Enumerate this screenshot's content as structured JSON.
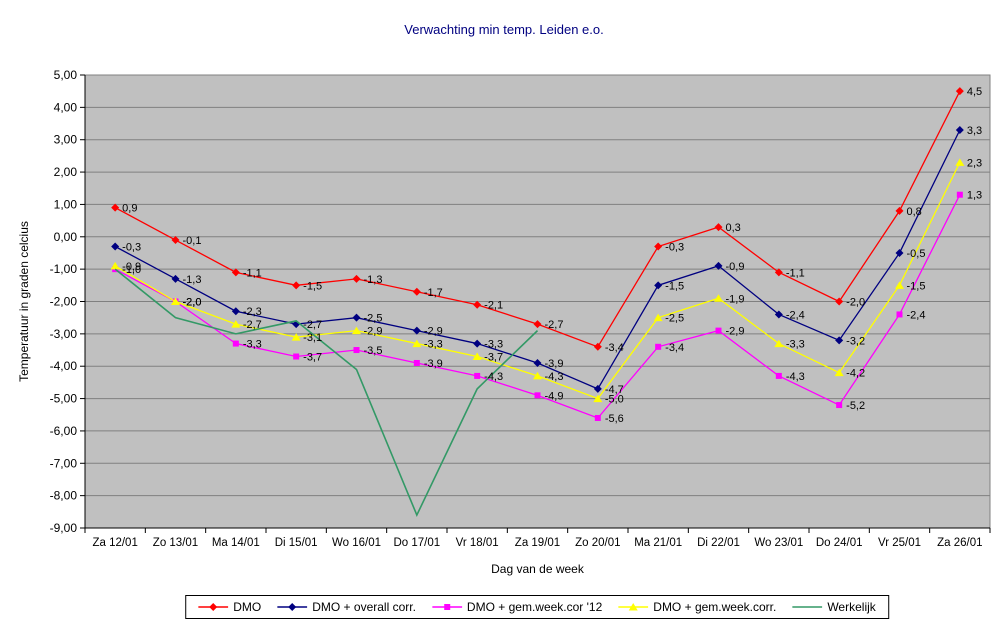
{
  "chart_data": {
    "type": "line",
    "title": "Verwachting min temp. Leiden e.o.",
    "xlabel": "Dag van de week",
    "ylabel": "Temperatuur in graden celcius",
    "ylim": [
      -9,
      5
    ],
    "ytick_step": 1,
    "grid": true,
    "legend_position": "bottom",
    "decimal_separator": ",",
    "plot_bg_color": "#C0C0C0",
    "gridline_color": "#808080",
    "categories": [
      "Za 12/01",
      "Zo 13/01",
      "Ma 14/01",
      "Di 15/01",
      "Wo 16/01",
      "Do 17/01",
      "Vr 18/01",
      "Za 19/01",
      "Zo 20/01",
      "Ma 21/01",
      "Di 22/01",
      "Wo 23/01",
      "Do 24/01",
      "Vr 25/01",
      "Za 26/01"
    ],
    "series": [
      {
        "name": "DMO",
        "color": "#FF0000",
        "marker": "diamond",
        "labels": true,
        "values": [
          0.9,
          -0.1,
          -1.1,
          -1.5,
          -1.3,
          -1.7,
          -2.1,
          -2.7,
          -3.4,
          -0.3,
          0.3,
          -1.1,
          -2.0,
          0.8,
          4.5
        ]
      },
      {
        "name": "DMO + overall corr.",
        "color": "#000080",
        "marker": "diamond",
        "labels": true,
        "values": [
          -0.3,
          -1.3,
          -2.3,
          -2.7,
          -2.5,
          -2.9,
          -3.3,
          -3.9,
          -4.7,
          -1.5,
          -0.9,
          -2.4,
          -3.2,
          -0.5,
          3.3
        ]
      },
      {
        "name": "DMO + gem.week.cor '12",
        "color": "#FF00FF",
        "marker": "square",
        "labels": true,
        "values": [
          -1.0,
          -2.0,
          -3.3,
          -3.7,
          -3.5,
          -3.9,
          -4.3,
          -4.9,
          -5.6,
          -3.4,
          -2.9,
          -4.3,
          -5.2,
          -2.4,
          1.3
        ]
      },
      {
        "name": "DMO + gem.week.corr.",
        "color": "#FFFF00",
        "marker": "triangle",
        "labels": true,
        "values": [
          -0.9,
          -2.0,
          -2.7,
          -3.1,
          -2.9,
          -3.3,
          -3.7,
          -4.3,
          -5.0,
          -2.5,
          -1.9,
          -3.3,
          -4.2,
          -1.5,
          2.3
        ]
      },
      {
        "name": "Werkelijk",
        "color": "#339966",
        "marker": "none",
        "labels": false,
        "values": [
          -1.0,
          -2.5,
          -3.0,
          -2.6,
          -4.1,
          -8.6,
          -4.7,
          -2.9,
          null,
          null,
          null,
          null,
          null,
          null,
          null
        ]
      }
    ]
  }
}
